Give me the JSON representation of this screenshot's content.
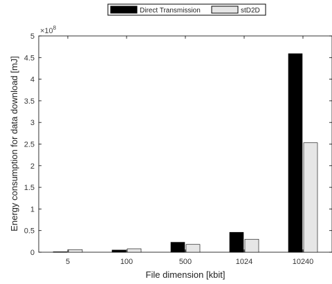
{
  "chart_data": {
    "type": "bar",
    "xlabel": "File dimension [kbit]",
    "ylabel": "Energy consumption for data download [mJ]",
    "categories": [
      "5",
      "100",
      "500",
      "1024",
      "10240"
    ],
    "series": [
      {
        "name": "Direct Transmission",
        "color": "#000000",
        "values": [
          1000000,
          5000000,
          23000000,
          46000000,
          459000000
        ]
      },
      {
        "name": "stD2D",
        "color": "#e6e6e6",
        "values": [
          6000000,
          8000000,
          18000000,
          30000000,
          253000000
        ]
      }
    ],
    "ylim": [
      0,
      500000000
    ],
    "y_ticks": [
      0,
      0.5,
      1,
      1.5,
      2,
      2.5,
      3,
      3.5,
      4,
      4.5,
      5
    ],
    "y_exponent_label": "×10",
    "y_exponent_power": "8",
    "legend_position": "top-center",
    "grid": false
  }
}
